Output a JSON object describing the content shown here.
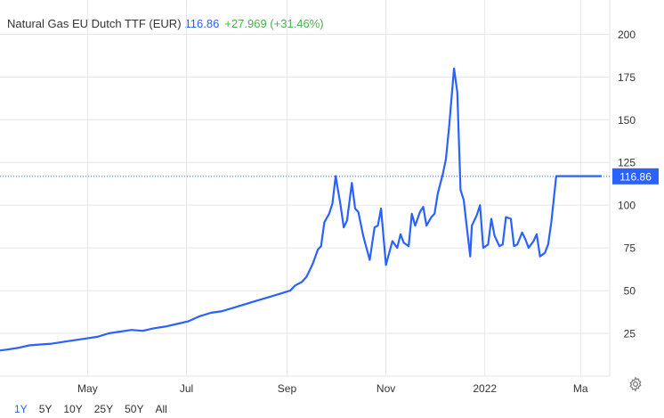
{
  "legend": {
    "name": "Natural Gas EU Dutch TTF (EUR)",
    "last": "116.86",
    "change": "+27.969 (+31.46%)"
  },
  "price_tag": "116.86",
  "range_buttons": [
    "1Y",
    "5Y",
    "10Y",
    "25Y",
    "50Y",
    "All"
  ],
  "active_range": "1Y",
  "colors": {
    "line": "#2962ff",
    "change": "#4caf50",
    "last": "#2962ff",
    "grid": "#e6e6e6",
    "axis": "#333333"
  },
  "icons": {
    "settings": "gear-icon"
  },
  "chart_data": {
    "type": "line",
    "title": "Natural Gas EU Dutch TTF (EUR)",
    "xlabel": "",
    "ylabel": "",
    "y_ticks": [
      25,
      50,
      75,
      100,
      125,
      150,
      175,
      200
    ],
    "ylim": [
      0,
      220
    ],
    "x_ticks": [
      "May",
      "Jul",
      "Sep",
      "Nov",
      "2022",
      "Ma"
    ],
    "x_tick_dates": [
      "2021-05-01",
      "2021-07-01",
      "2021-09-01",
      "2021-11-01",
      "2022-01-01",
      "2022-03-01"
    ],
    "xlim": [
      "2021-03-08",
      "2022-03-19"
    ],
    "grid": true,
    "last_value": 116.86,
    "series": [
      {
        "name": "Natural Gas EU Dutch TTF (EUR)",
        "x": [
          "2021-03-08",
          "2021-03-12",
          "2021-03-19",
          "2021-03-26",
          "2021-04-02",
          "2021-04-09",
          "2021-04-16",
          "2021-04-23",
          "2021-04-30",
          "2021-05-07",
          "2021-05-14",
          "2021-05-21",
          "2021-05-28",
          "2021-06-04",
          "2021-06-11",
          "2021-06-18",
          "2021-06-25",
          "2021-07-02",
          "2021-07-09",
          "2021-07-16",
          "2021-07-23",
          "2021-07-30",
          "2021-08-06",
          "2021-08-13",
          "2021-08-20",
          "2021-08-27",
          "2021-09-03",
          "2021-09-06",
          "2021-09-10",
          "2021-09-13",
          "2021-09-15",
          "2021-09-17",
          "2021-09-20",
          "2021-09-22",
          "2021-09-24",
          "2021-09-27",
          "2021-09-29",
          "2021-10-01",
          "2021-10-04",
          "2021-10-06",
          "2021-10-08",
          "2021-10-11",
          "2021-10-13",
          "2021-10-15",
          "2021-10-18",
          "2021-10-20",
          "2021-10-22",
          "2021-10-25",
          "2021-10-27",
          "2021-10-29",
          "2021-11-01",
          "2021-11-03",
          "2021-11-05",
          "2021-11-08",
          "2021-11-10",
          "2021-11-12",
          "2021-11-15",
          "2021-11-17",
          "2021-11-19",
          "2021-11-22",
          "2021-11-24",
          "2021-11-26",
          "2021-11-29",
          "2021-12-01",
          "2021-12-03",
          "2021-12-06",
          "2021-12-08",
          "2021-12-10",
          "2021-12-13",
          "2021-12-15",
          "2021-12-17",
          "2021-12-19",
          "2021-12-21",
          "2021-12-23",
          "2021-12-24",
          "2021-12-27",
          "2021-12-29",
          "2021-12-31",
          "2022-01-03",
          "2022-01-05",
          "2022-01-07",
          "2022-01-10",
          "2022-01-12",
          "2022-01-14",
          "2022-01-17",
          "2022-01-19",
          "2022-01-21",
          "2022-01-24",
          "2022-01-26",
          "2022-01-28",
          "2022-01-31",
          "2022-02-02",
          "2022-02-04",
          "2022-02-07",
          "2022-02-09",
          "2022-02-11",
          "2022-02-14",
          "2022-02-16",
          "2022-02-18",
          "2022-02-21",
          "2022-02-23",
          "2022-02-25",
          "2022-02-28",
          "2022-03-02",
          "2022-03-04",
          "2022-03-07",
          "2022-03-09",
          "2022-03-11",
          "2022-03-14"
        ],
        "y": [
          15,
          15.5,
          16.5,
          18,
          18.5,
          19,
          20,
          21,
          22,
          23,
          25,
          26,
          27,
          26.5,
          28,
          29,
          30.5,
          32,
          35,
          37,
          38,
          40,
          42,
          44,
          46,
          48,
          50,
          53,
          55,
          58,
          62,
          66,
          74,
          76,
          90,
          95,
          101,
          117,
          100,
          87,
          91,
          113,
          98,
          96,
          82,
          75,
          68,
          87,
          88,
          98,
          65,
          72,
          79,
          75,
          83,
          78,
          76,
          95,
          88,
          96,
          99,
          88,
          93,
          95,
          107,
          118,
          127,
          146,
          180,
          166,
          109,
          103,
          86,
          70,
          88,
          94,
          100,
          75,
          77,
          92,
          82,
          76,
          77,
          93,
          92,
          76,
          77,
          84,
          80,
          75,
          79,
          83,
          70,
          72,
          77,
          90,
          117,
          117,
          117,
          117,
          117,
          117,
          117,
          117,
          117,
          117,
          117,
          117,
          117
        ]
      }
    ]
  }
}
